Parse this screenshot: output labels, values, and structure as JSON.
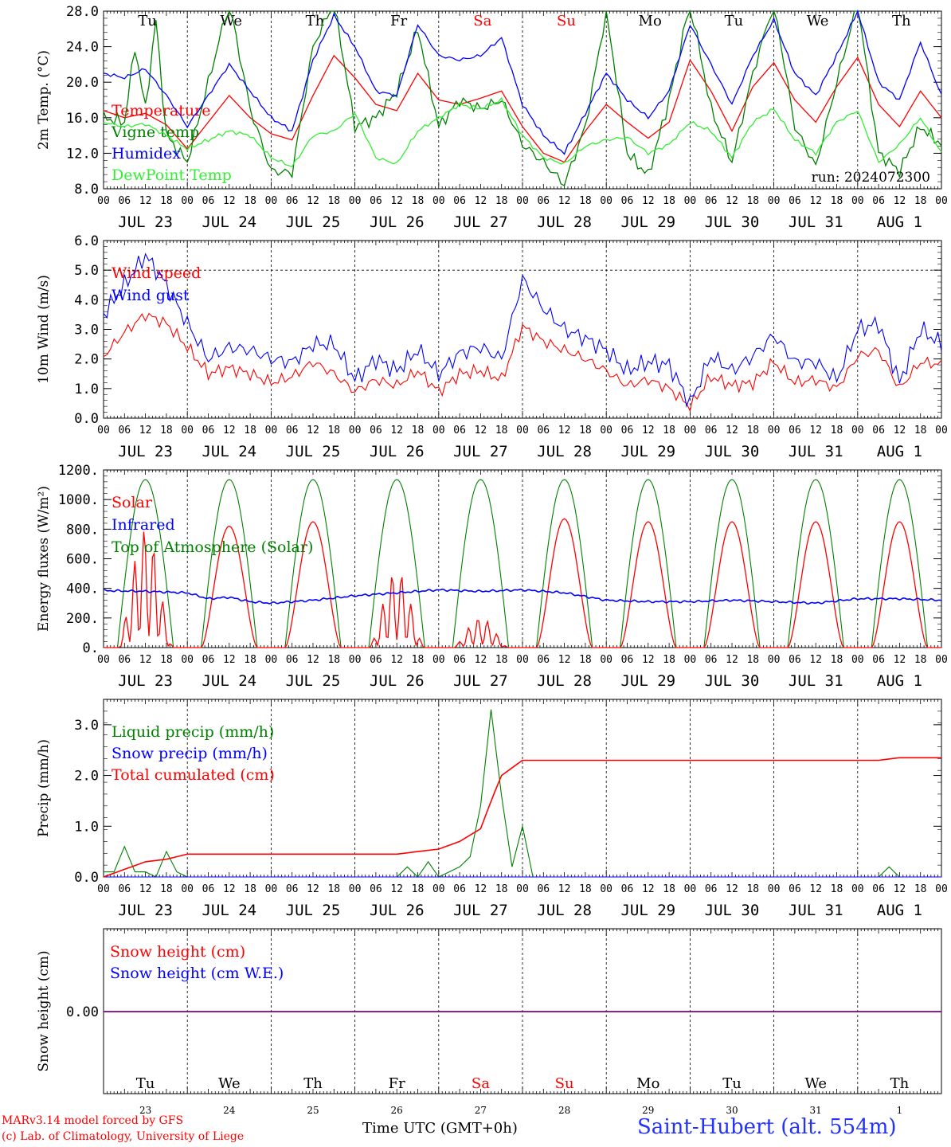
{
  "colors": {
    "red": "#ff0000",
    "darkgreen": "#008000",
    "blue": "#0000ff",
    "lime": "#33ee33",
    "purple": "#7f007f",
    "black": "#000000"
  },
  "dates": [
    "JUL 23",
    "JUL 24",
    "JUL 25",
    "JUL 26",
    "JUL 27",
    "JUL 28",
    "JUL 29",
    "JUL 30",
    "JUL 31",
    "AUG  1"
  ],
  "weekdays": [
    "Tu",
    "We",
    "Th",
    "Fr",
    "Sa",
    "Su",
    "Mo",
    "Tu",
    "We",
    "Th"
  ],
  "weekday_colors": [
    "#000000",
    "#000000",
    "#000000",
    "#000000",
    "#ff0000",
    "#ff0000",
    "#000000",
    "#000000",
    "#000000",
    "#000000"
  ],
  "daynums": [
    "23",
    "24",
    "25",
    "26",
    "27",
    "28",
    "29",
    "30",
    "31",
    "1"
  ],
  "hour_ticks": [
    "00",
    "06",
    "12",
    "18"
  ],
  "hour_end": "00",
  "run_label": "run: 2024072300",
  "footer": {
    "credit_line1": "MARv3.14 model forced by GFS",
    "credit_line2": "(c) Lab. of Climatology, University of Liege",
    "time_label": "Time UTC (GMT+0h)",
    "station": "Saint-Hubert (alt. 554m)"
  },
  "chart_data": [
    {
      "type": "line",
      "ylabel": "2m Temp. (°C)",
      "ylim": [
        8,
        28
      ],
      "yticks": [
        "8.0",
        "12.0",
        "16.0",
        "20.0",
        "24.0",
        "28.0"
      ],
      "x_unit": "hours since JUL 23 00 UTC",
      "series": [
        {
          "name": "Temperature",
          "color": "#ff0000",
          "x": [
            0,
            6,
            12,
            18,
            24,
            30,
            36,
            42,
            48,
            54,
            60,
            66,
            72,
            78,
            84,
            90,
            96,
            102,
            108,
            114,
            120,
            126,
            132,
            138,
            144,
            150,
            156,
            162,
            168,
            174,
            180,
            186,
            192,
            198,
            204,
            210,
            216,
            222,
            228,
            234,
            240
          ],
          "y": [
            16.8,
            16.0,
            16.5,
            15.2,
            12.5,
            15.5,
            18.5,
            16.0,
            14.2,
            13.5,
            18.5,
            23.0,
            20.5,
            17.5,
            16.8,
            21.0,
            18.0,
            17.5,
            18.2,
            19.0,
            15.0,
            12.0,
            11.0,
            14.5,
            17.5,
            15.5,
            13.7,
            15.5,
            22.5,
            19.0,
            14.5,
            19.5,
            22.2,
            18.0,
            15.5,
            19.5,
            22.8,
            17.5,
            15.0,
            19.0,
            16.0
          ]
        },
        {
          "name": "Vigne temp",
          "color": "#008000",
          "x": [
            0,
            6,
            9,
            12,
            15,
            18,
            24,
            30,
            36,
            42,
            48,
            54,
            60,
            66,
            72,
            78,
            84,
            90,
            96,
            102,
            108,
            114,
            120,
            126,
            132,
            138,
            144,
            150,
            156,
            162,
            168,
            174,
            180,
            186,
            192,
            198,
            204,
            210,
            216,
            222,
            228,
            234,
            240
          ],
          "y": [
            16.0,
            15.5,
            24.0,
            17.0,
            27.0,
            14.0,
            11.0,
            20.0,
            29.0,
            17.0,
            10.0,
            9.8,
            24.0,
            29.0,
            15.0,
            16.0,
            19.0,
            26.0,
            15.0,
            18.0,
            17.0,
            18.0,
            13.0,
            11.0,
            8.5,
            15.0,
            28.0,
            12.0,
            9.5,
            18.0,
            29.0,
            17.0,
            11.0,
            21.0,
            29.0,
            15.0,
            10.5,
            20.0,
            29.0,
            12.0,
            10.0,
            15.0,
            13.0
          ]
        },
        {
          "name": "Humidex",
          "color": "#0000ff",
          "x": [
            0,
            6,
            12,
            18,
            24,
            30,
            36,
            42,
            48,
            54,
            60,
            66,
            72,
            78,
            84,
            90,
            96,
            102,
            108,
            114,
            120,
            126,
            132,
            138,
            144,
            150,
            156,
            162,
            168,
            174,
            180,
            186,
            192,
            198,
            204,
            210,
            216,
            222,
            228,
            234,
            240
          ],
          "y": [
            21.0,
            20.5,
            21.5,
            18.5,
            15.0,
            18.5,
            22.0,
            19.0,
            16.0,
            14.5,
            22.5,
            27.5,
            24.0,
            19.0,
            18.5,
            26.5,
            23.0,
            22.5,
            23.0,
            25.0,
            17.5,
            14.0,
            12.0,
            16.5,
            21.0,
            18.0,
            16.0,
            19.0,
            26.5,
            22.0,
            17.5,
            23.0,
            27.0,
            21.0,
            18.5,
            23.0,
            28.0,
            20.0,
            18.0,
            24.5,
            18.5
          ]
        },
        {
          "name": "DewPoint Temp",
          "color": "#33ee33",
          "x": [
            0,
            6,
            12,
            18,
            24,
            30,
            36,
            42,
            48,
            54,
            60,
            66,
            72,
            78,
            84,
            90,
            96,
            102,
            108,
            114,
            120,
            126,
            132,
            138,
            144,
            150,
            156,
            162,
            168,
            174,
            180,
            186,
            192,
            198,
            204,
            210,
            216,
            222,
            228,
            234,
            240
          ],
          "y": [
            15.5,
            15.0,
            15.3,
            14.0,
            12.5,
            13.5,
            14.5,
            14.0,
            11.5,
            10.5,
            14.0,
            14.5,
            16.5,
            11.5,
            10.8,
            14.5,
            16.0,
            17.5,
            17.0,
            18.0,
            14.0,
            11.5,
            10.8,
            12.8,
            13.5,
            13.8,
            12.0,
            13.0,
            15.5,
            14.5,
            11.5,
            15.5,
            17.0,
            13.5,
            12.0,
            15.5,
            16.8,
            11.0,
            13.0,
            16.0,
            12.0
          ]
        }
      ]
    },
    {
      "type": "line",
      "ylabel": "10m Wind (m/s)",
      "ylim": [
        0,
        6
      ],
      "yticks": [
        "0.0",
        "1.0",
        "2.0",
        "3.0",
        "4.0",
        "5.0",
        "6.0"
      ],
      "x_unit": "hours since JUL 23 00 UTC",
      "series": [
        {
          "name": "Wind speed",
          "color": "#ff0000",
          "x": [
            0,
            6,
            12,
            18,
            24,
            30,
            36,
            42,
            48,
            54,
            60,
            66,
            72,
            78,
            84,
            90,
            96,
            102,
            108,
            114,
            120,
            126,
            132,
            138,
            144,
            150,
            156,
            162,
            168,
            174,
            180,
            186,
            192,
            198,
            204,
            210,
            216,
            222,
            228,
            234,
            240
          ],
          "y": [
            2.1,
            2.9,
            3.5,
            3.2,
            2.4,
            1.5,
            1.7,
            1.5,
            1.2,
            1.4,
            1.9,
            1.5,
            0.9,
            1.3,
            1.1,
            1.6,
            0.9,
            1.5,
            1.6,
            1.3,
            3.1,
            2.6,
            2.3,
            2.0,
            1.6,
            1.1,
            1.3,
            1.0,
            0.4,
            1.4,
            1.1,
            1.2,
            1.9,
            1.2,
            1.3,
            1.0,
            2.1,
            2.3,
            1.0,
            1.9,
            1.8
          ]
        },
        {
          "name": "Wind gust",
          "color": "#0000ff",
          "x": [
            0,
            6,
            12,
            18,
            24,
            30,
            36,
            42,
            48,
            54,
            60,
            66,
            72,
            78,
            84,
            90,
            96,
            102,
            108,
            114,
            120,
            126,
            132,
            138,
            144,
            150,
            156,
            162,
            168,
            174,
            180,
            186,
            192,
            198,
            204,
            210,
            216,
            222,
            228,
            234,
            240
          ],
          "y": [
            3.5,
            4.5,
            5.5,
            4.5,
            3.2,
            2.0,
            2.4,
            2.3,
            2.0,
            1.9,
            2.5,
            2.5,
            1.3,
            2.0,
            1.6,
            2.3,
            1.5,
            2.2,
            2.4,
            2.0,
            4.7,
            3.7,
            3.0,
            2.7,
            2.3,
            1.6,
            1.9,
            1.8,
            0.5,
            2.1,
            1.6,
            2.1,
            2.8,
            1.9,
            1.9,
            1.3,
            3.0,
            3.2,
            1.2,
            3.0,
            2.5
          ]
        }
      ]
    },
    {
      "type": "line",
      "ylabel": "Energy fluxes (W/m²)",
      "ylim": [
        0,
        1200
      ],
      "yticks": [
        "0.",
        "200.",
        "400.",
        "600.",
        "800.",
        "1000.",
        "1200."
      ],
      "x_unit": "hours since JUL 23 00 UTC",
      "series": [
        {
          "name": "Solar",
          "color": "#ff0000",
          "day_peaks": [
            800,
            820,
            850,
            520,
            200,
            870,
            850,
            850,
            850,
            850
          ]
        },
        {
          "name": "Infrared",
          "color": "#0000ff",
          "x": [
            0,
            12,
            24,
            30,
            36,
            42,
            48,
            60,
            72,
            84,
            96,
            108,
            120,
            132,
            144,
            156,
            168,
            180,
            192,
            204,
            216,
            228,
            240
          ],
          "y": [
            385,
            380,
            370,
            330,
            340,
            310,
            300,
            320,
            350,
            370,
            390,
            380,
            390,
            370,
            320,
            310,
            310,
            320,
            310,
            300,
            330,
            330,
            320
          ]
        },
        {
          "name": "Top of Atmosphere (Solar)",
          "color": "#008000",
          "day_peak": 1135
        }
      ]
    },
    {
      "type": "line",
      "ylabel": "Precip (mm/h)",
      "ylim": [
        0,
        3.5
      ],
      "yticks": [
        "0.0",
        "1.0",
        "2.0",
        "3.0"
      ],
      "x_unit": "hours since JUL 23 00 UTC",
      "series": [
        {
          "name": "Liquid precip (mm/h)",
          "color": "#008000",
          "x": [
            0,
            3,
            6,
            9,
            12,
            15,
            18,
            21,
            24,
            27,
            30,
            33,
            36,
            84,
            87,
            90,
            93,
            96,
            99,
            102,
            105,
            108,
            111,
            114,
            117,
            120,
            123,
            126,
            129,
            132,
            222,
            225,
            228,
            231
          ],
          "y": [
            0.1,
            0.1,
            0.6,
            0.1,
            0.1,
            0.0,
            0.5,
            0.1,
            0.0,
            0.0,
            0.0,
            0.0,
            0.0,
            0.0,
            0.2,
            0.0,
            0.3,
            0.0,
            0.1,
            0.2,
            0.4,
            1.4,
            3.3,
            1.6,
            0.2,
            1.0,
            0.0,
            0.0,
            0.0,
            0.0,
            0.0,
            0.2,
            0.0,
            0.0
          ]
        },
        {
          "name": "Snow precip (mm/h)",
          "color": "#0000ff",
          "x": [
            0,
            240
          ],
          "y": [
            0,
            0
          ]
        },
        {
          "name": "Total cumulated (cm)",
          "color": "#ff0000",
          "x": [
            0,
            6,
            12,
            18,
            24,
            48,
            72,
            84,
            96,
            102,
            108,
            111,
            114,
            120,
            126,
            222,
            228,
            240
          ],
          "y": [
            0.0,
            0.15,
            0.3,
            0.35,
            0.45,
            0.45,
            0.45,
            0.45,
            0.55,
            0.7,
            0.95,
            1.5,
            2.0,
            2.3,
            2.3,
            2.3,
            2.35,
            2.35
          ]
        }
      ]
    },
    {
      "type": "line",
      "ylabel": "Snow height (cm)",
      "yticks": [
        "0.00"
      ],
      "x_unit": "hours since JUL 23 00 UTC",
      "series": [
        {
          "name": "Snow height (cm)",
          "color": "#ff0000",
          "x": [
            0,
            240
          ],
          "y": [
            0,
            0
          ]
        },
        {
          "name": "Snow height (cm W.E.)",
          "color": "#0000ff",
          "x": [
            0,
            240
          ],
          "y": [
            0,
            0
          ]
        }
      ]
    }
  ]
}
